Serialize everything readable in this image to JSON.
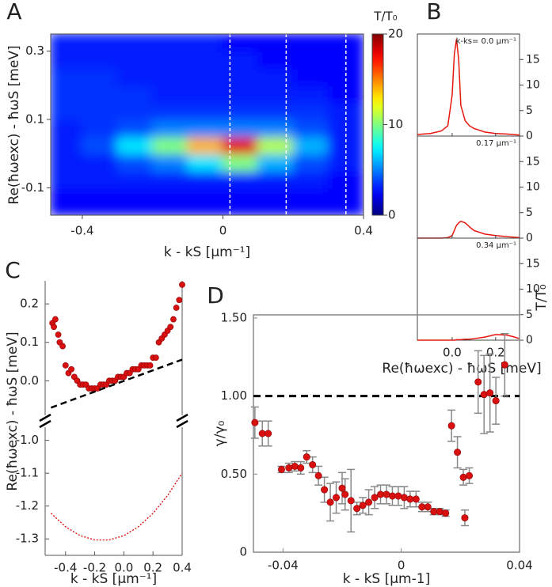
{
  "chart_data": [
    {
      "panel": "A",
      "type": "heatmap",
      "xlabel": "k - kS [µm⁻¹]",
      "ylabel": "Re(ħωexc) - ħωS [meV]",
      "x_edges": [
        -0.49,
        -0.4,
        -0.3,
        -0.2,
        -0.1,
        0,
        0.1,
        0.2,
        0.3,
        0.4
      ],
      "y_edges": [
        -0.18,
        -0.1,
        -0.05,
        0,
        0.05,
        0.1,
        0.15,
        0.2,
        0.25,
        0.3,
        0.35
      ],
      "z": [
        [
          2.5,
          2.5,
          2.5,
          2.5,
          2.5,
          2.5,
          2.5,
          2.5,
          2.5
        ],
        [
          3,
          3,
          3,
          3,
          3,
          3,
          3,
          3,
          2.5
        ],
        [
          3,
          3,
          4,
          5,
          7,
          10,
          6,
          4,
          3
        ],
        [
          3,
          4,
          7,
          10,
          14,
          18,
          11,
          6,
          3
        ],
        [
          3,
          3.5,
          4,
          5,
          5,
          5,
          5,
          4,
          3
        ],
        [
          3.5,
          3.5,
          3.5,
          3.5,
          3.5,
          3.5,
          3.5,
          3.5,
          3
        ],
        [
          3.5,
          3.5,
          3.5,
          3,
          3,
          3,
          3,
          3,
          2.5
        ],
        [
          3.5,
          3.5,
          3,
          3,
          3,
          3,
          3,
          2.5,
          2.5
        ],
        [
          3,
          3,
          3,
          3,
          3,
          3,
          2.5,
          2.5,
          2.5
        ],
        [
          3,
          3,
          3,
          3,
          3,
          2.5,
          2.5,
          2.5,
          2.5
        ]
      ],
      "colormap": "jet",
      "clim": [
        0,
        20
      ],
      "cticks": [
        0,
        10,
        20
      ],
      "colorbar_label": "T/T₀",
      "xlim": [
        -0.49,
        0.4
      ],
      "ylim": [
        -0.18,
        0.35
      ],
      "xticks": [
        -0.4,
        0,
        0.4
      ],
      "yticks": [
        -0.1,
        0.1,
        0.3
      ],
      "vlines": [
        0.02,
        0.18,
        0.35
      ],
      "vline_color": "#ffffff"
    },
    {
      "panel": "B",
      "type": "line",
      "xlabel": "Re(ħωexc) - ħωS [meV]",
      "ylabel": "T/T₀",
      "x": [
        -0.16,
        -0.1,
        -0.05,
        -0.02,
        0,
        0.01,
        0.02,
        0.03,
        0.04,
        0.06,
        0.08,
        0.1,
        0.15,
        0.2,
        0.25,
        0.28,
        0.31
      ],
      "series": [
        {
          "name": "k-ks= 0.0 µm⁻¹",
          "color": "#e8160c",
          "values": [
            0.3,
            0.5,
            1,
            2,
            8,
            16,
            19,
            15,
            6,
            3,
            2,
            1.5,
            0.8,
            0.5,
            0.4,
            0.3,
            0.2
          ]
        },
        {
          "name": "0.17 µm⁻¹",
          "color": "#e8160c",
          "values": [
            0,
            0,
            0,
            0.1,
            0.5,
            1.5,
            2.5,
            3,
            3.3,
            3,
            2.2,
            1.5,
            0.8,
            0.5,
            0.3,
            0.2,
            0.1
          ]
        },
        {
          "name": "0.34 µm⁻¹",
          "color": "#e8160c",
          "values": [
            0,
            0,
            0,
            0,
            0,
            0,
            0.1,
            0.1,
            0.1,
            0.2,
            0.2,
            0.3,
            0.6,
            1.1,
            1,
            0.7,
            0.3
          ]
        }
      ],
      "xlim": [
        -0.16,
        0.31
      ],
      "ylim": [
        0,
        20
      ],
      "xticks": [
        {
          "value": 0,
          "label": "0.0"
        },
        0.2
      ],
      "yticks": [
        0,
        5,
        10,
        15
      ]
    },
    {
      "panel": "C",
      "type": "scatter",
      "xlabel": "k - kS [µm⁻¹]",
      "ylabel": "Re(ħωexc) - ħωS [meV]",
      "series": [
        {
          "style": "markers",
          "color": "#d81010",
          "x": [
            -0.49,
            -0.48,
            -0.47,
            -0.45,
            -0.44,
            -0.42,
            -0.4,
            -0.38,
            -0.36,
            -0.34,
            -0.32,
            -0.3,
            -0.28,
            -0.26,
            -0.24,
            -0.22,
            -0.2,
            -0.18,
            -0.16,
            -0.14,
            -0.12,
            -0.1,
            -0.08,
            -0.06,
            -0.04,
            -0.02,
            0,
            0.02,
            0.04,
            0.06,
            0.08,
            0.1,
            0.12,
            0.14,
            0.16,
            0.18,
            0.2,
            0.22,
            0.24,
            0.26,
            0.28,
            0.3,
            0.32,
            0.34,
            0.36,
            0.38,
            0.4
          ],
          "values": [
            0.15,
            0.14,
            0.16,
            0.12,
            0.1,
            0.09,
            0.04,
            0.02,
            0.03,
            0.01,
            0,
            -0.01,
            -0.01,
            -0.01,
            -0.02,
            -0.02,
            -0.02,
            -0.02,
            -0.01,
            -0.01,
            -0.01,
            0,
            0,
            0,
            0.01,
            0.01,
            0.01,
            0.02,
            0.02,
            0.03,
            0.03,
            0.03,
            0.04,
            0.04,
            0.04,
            0.04,
            0.06,
            0.06,
            0.1,
            0.11,
            0.12,
            0.13,
            0.14,
            0.16,
            0.19,
            0.21,
            0.25
          ]
        },
        {
          "style": "dashed",
          "color": "#000000",
          "x": [
            -0.5,
            0.4
          ],
          "values": [
            -0.07,
            0.055
          ]
        },
        {
          "style": "dotted",
          "color": "#e00000",
          "axis": "y2",
          "x": [
            -0.5,
            -0.4,
            -0.3,
            -0.2,
            -0.1,
            0,
            0.1,
            0.2,
            0.3,
            0.4
          ],
          "values": [
            -1.222,
            -1.263,
            -1.29,
            -1.303,
            -1.303,
            -1.29,
            -1.263,
            -1.222,
            -1.168,
            -1.1
          ]
        }
      ],
      "xlim": [
        -0.54,
        0.4
      ],
      "ylim": [
        -0.09,
        0.26
      ],
      "y2lim": [
        -1.35,
        -0.96
      ],
      "xticks": [
        -0.4,
        -0.2,
        {
          "value": 0,
          "label": "0.0"
        },
        0.2,
        0.4
      ],
      "yticks": [
        {
          "value": 0,
          "label": "0.0"
        },
        0.1,
        0.2
      ],
      "y2ticks": [
        {
          "value": -1,
          "label": "-1.0"
        },
        -1.1,
        -1.2,
        -1.3
      ]
    },
    {
      "panel": "D",
      "type": "errorbar",
      "xlabel": "k - kS [µm-1]",
      "ylabel": "γ/γ₀",
      "x": [
        -0.0495,
        -0.047,
        -0.045,
        -0.0405,
        -0.038,
        -0.036,
        -0.034,
        -0.032,
        -0.03,
        -0.028,
        -0.026,
        -0.024,
        -0.022,
        -0.02,
        -0.019,
        -0.017,
        -0.015,
        -0.013,
        -0.011,
        -0.009,
        -0.007,
        -0.005,
        -0.003,
        -0.001,
        0.001,
        0.003,
        0.005,
        0.007,
        0.009,
        0.011,
        0.013,
        0.015,
        0.017,
        0.019,
        0.021,
        0.0215,
        0.023,
        0.026,
        0.028,
        0.03,
        0.032,
        0.035
      ],
      "values": [
        0.83,
        0.76,
        0.76,
        0.53,
        0.54,
        0.55,
        0.54,
        0.61,
        0.56,
        0.49,
        0.4,
        0.32,
        0.35,
        0.41,
        0.37,
        0.33,
        0.28,
        0.3,
        0.32,
        0.35,
        0.37,
        0.37,
        0.36,
        0.36,
        0.35,
        0.34,
        0.34,
        0.29,
        0.29,
        0.26,
        0.26,
        0.25,
        0.81,
        0.64,
        0.48,
        0.22,
        0.49,
        1.09,
        1.01,
        1.02,
        0.97,
        1.2
      ],
      "errors": [
        0.1,
        0.08,
        0.08,
        0.02,
        0.03,
        0.03,
        0.04,
        0.04,
        0.05,
        0.06,
        0.08,
        0.12,
        0.1,
        0.1,
        0.1,
        0.2,
        0.04,
        0.05,
        0.08,
        0.07,
        0.06,
        0.06,
        0.06,
        0.06,
        0.07,
        0.05,
        0.05,
        0.03,
        0.03,
        0.02,
        0.02,
        0.02,
        0.1,
        0.1,
        0.05,
        0.05,
        0.05,
        0.2,
        0.25,
        0.25,
        0.15,
        0.2
      ],
      "color": "#d81010",
      "error_color": "#888888",
      "hlines": [
        1
      ],
      "hline_color": "#000000",
      "xlim": [
        -0.05,
        0.04
      ],
      "ylim": [
        0,
        1.52
      ],
      "xticks": [
        -0.04,
        0,
        0.04
      ],
      "yticks": [
        0,
        {
          "value": 0.5,
          "label": "0.50"
        },
        {
          "value": 1,
          "label": "1.00"
        },
        {
          "value": 1.5,
          "label": "1.50"
        }
      ]
    }
  ]
}
